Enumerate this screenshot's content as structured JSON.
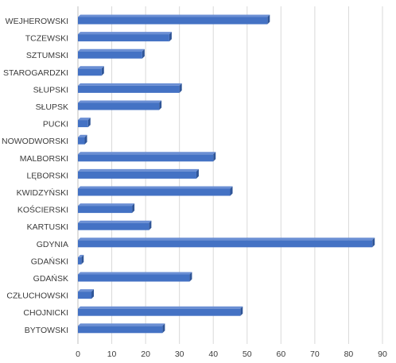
{
  "chart_data": {
    "type": "bar",
    "orientation": "horizontal",
    "style": "3d",
    "categories": [
      "WEJHEROWSKI",
      "TCZEWSKI",
      "SZTUMSKI",
      "STAROGARDZKI",
      "SŁUPSKI",
      "SŁUPSK",
      "PUCKI",
      "NOWODWORSKI",
      "MALBORSKI",
      "LĘBORSKI",
      "KWIDZYŃSKI",
      "KOŚCIERSKI",
      "KARTUSKI",
      "GDYNIA",
      "GDAŃSKI",
      "GDAŃSK",
      "CZŁUCHOWSKI",
      "CHOJNICKI",
      "BYTOWSKI"
    ],
    "values": [
      56,
      27,
      19,
      7,
      30,
      24,
      3,
      2,
      40,
      35,
      45,
      16,
      21,
      87,
      1,
      33,
      4,
      48,
      25
    ],
    "xlim": [
      0,
      90
    ],
    "xticks": [
      "0",
      "10",
      "20",
      "30",
      "40",
      "50",
      "60",
      "70",
      "80",
      "90"
    ],
    "grid": true,
    "legend": "none",
    "colors": {
      "bar_front": "#4472c4",
      "bar_top": "#6b8fd4",
      "bar_side": "#2f5597",
      "grid": "#d9d9d9"
    }
  }
}
